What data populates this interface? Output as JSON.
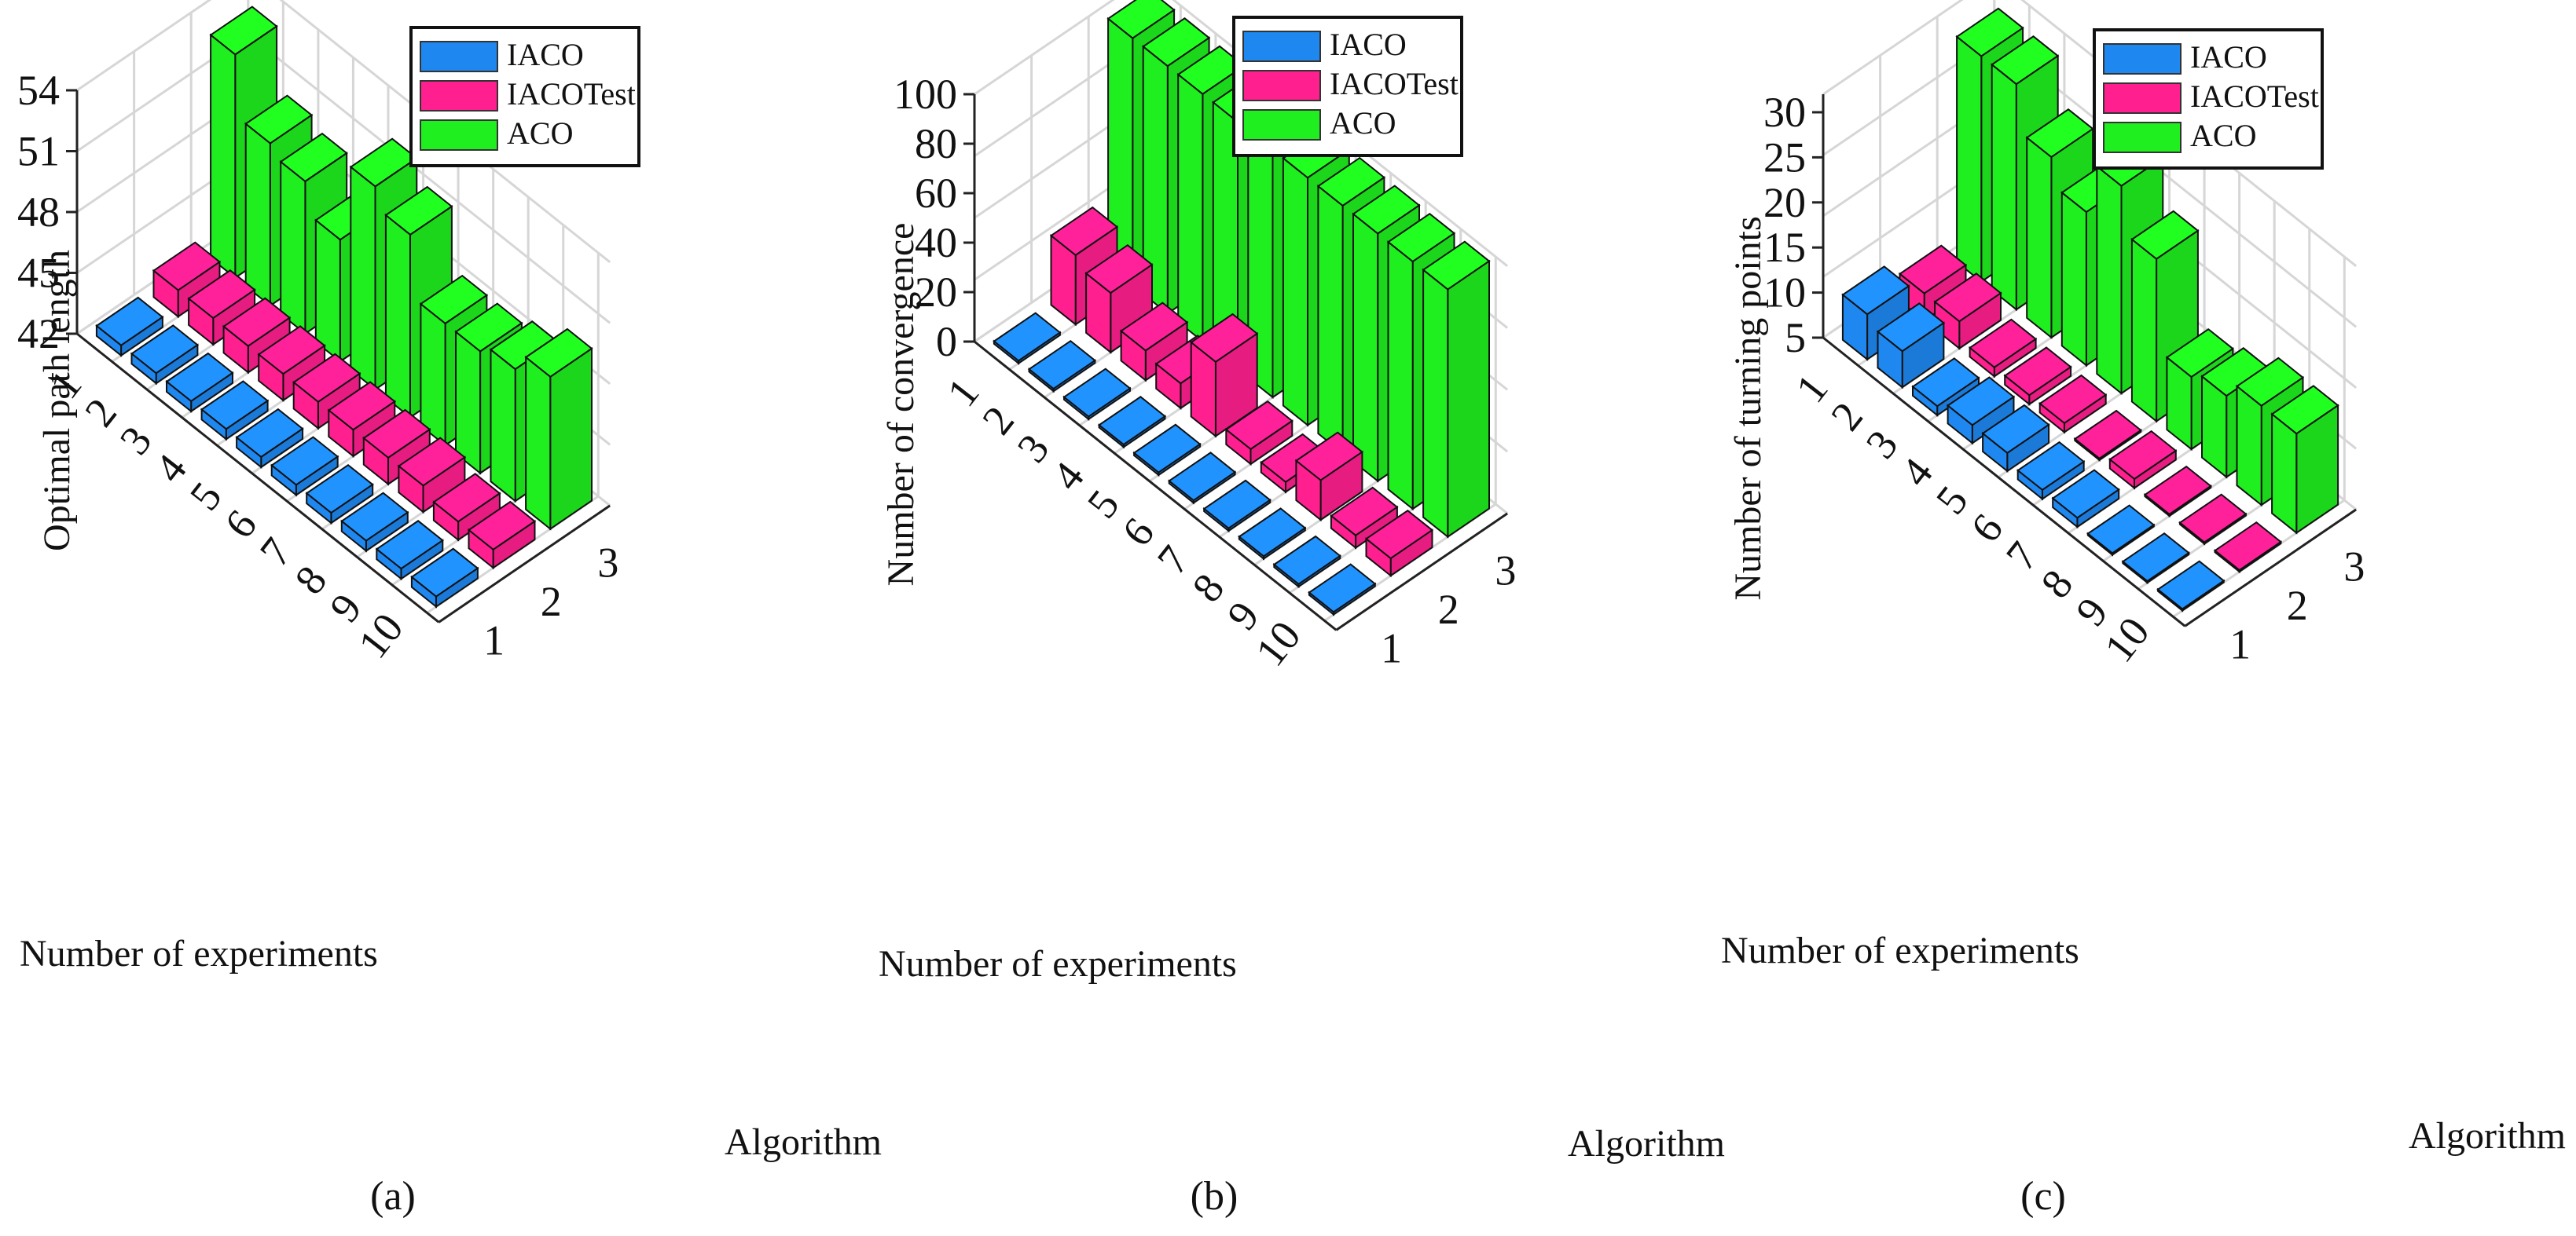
{
  "figure": {
    "charts": [
      {
        "caption": "(a)"
      },
      {
        "caption": "(b)"
      },
      {
        "caption": "(c)"
      }
    ]
  },
  "colors": {
    "IACO": "#1e88f0",
    "IACOTest": "#ff1f8f",
    "ACO": "#1fee1f"
  },
  "chart_data": [
    {
      "type": "bar3d",
      "caption": "(a)",
      "zlabel": "Optimal path length",
      "xlabel": "Number of experiments",
      "ylabel": "Algorithm",
      "x_ticks": [
        "1",
        "2",
        "3",
        "4",
        "5",
        "6",
        "7",
        "8",
        "9",
        "10"
      ],
      "y_ticks": [
        "1",
        "2",
        "3"
      ],
      "z_ticks": [
        "42",
        "45",
        "48",
        "51",
        "54"
      ],
      "zlim": [
        42,
        54
      ],
      "legend": [
        "IACO",
        "IACOTest",
        "ACO"
      ],
      "legend_position": "top",
      "categories": [
        "1",
        "2",
        "3",
        "4",
        "5",
        "6",
        "7",
        "8",
        "9",
        "10"
      ],
      "series": [
        {
          "name": "IACO",
          "values": [
            42.5,
            42.5,
            42.5,
            42.5,
            42.5,
            42.5,
            42.5,
            42.5,
            42.5,
            42.5
          ]
        },
        {
          "name": "IACOTest",
          "values": [
            43.3,
            43.3,
            43.3,
            43.3,
            43.3,
            43.3,
            43.3,
            43.3,
            42.9,
            42.9
          ]
        },
        {
          "name": "ACO",
          "values": [
            53.0,
            50.0,
            49.5,
            48.0,
            52.0,
            51.0,
            48.0,
            48.0,
            48.5,
            49.5
          ]
        }
      ]
    },
    {
      "type": "bar3d",
      "caption": "(b)",
      "zlabel": "Number of convergence",
      "xlabel": "Number of experiments",
      "ylabel": "Algorithm",
      "x_ticks": [
        "1",
        "2",
        "3",
        "4",
        "5",
        "6",
        "7",
        "8",
        "9",
        "10"
      ],
      "y_ticks": [
        "1",
        "2",
        "3"
      ],
      "z_ticks": [
        "0",
        "20",
        "40",
        "60",
        "80",
        "100"
      ],
      "zlim": [
        0,
        100
      ],
      "legend": [
        "IACO",
        "IACOTest",
        "ACO"
      ],
      "legend_position": "top",
      "categories": [
        "1",
        "2",
        "3",
        "4",
        "5",
        "6",
        "7",
        "8",
        "9",
        "10"
      ],
      "series": [
        {
          "name": "IACO",
          "values": [
            1,
            1,
            1,
            1,
            1,
            1,
            1,
            1,
            1,
            1
          ]
        },
        {
          "name": "IACOTest",
          "values": [
            28,
            24,
            12,
            10,
            30,
            6,
            4,
            16,
            5,
            7
          ]
        },
        {
          "name": "ACO",
          "values": [
            100,
            100,
            100,
            100,
            100,
            100,
            100,
            100,
            100,
            100
          ]
        }
      ]
    },
    {
      "type": "bar3d",
      "caption": "(c)",
      "zlabel": "Number of turning points",
      "xlabel": "Number of experiments",
      "ylabel": "Algorithm",
      "x_ticks": [
        "1",
        "2",
        "3",
        "4",
        "5",
        "6",
        "7",
        "8",
        "9",
        "10"
      ],
      "y_ticks": [
        "1",
        "2",
        "3"
      ],
      "z_ticks": [
        "5",
        "10",
        "15",
        "20",
        "25",
        "30"
      ],
      "zlim": [
        5,
        32
      ],
      "legend": [
        "IACO",
        "IACOTest",
        "ACO"
      ],
      "legend_position": "top",
      "categories": [
        "1",
        "2",
        "3",
        "4",
        "5",
        "6",
        "7",
        "8",
        "9",
        "10"
      ],
      "series": [
        {
          "name": "IACO",
          "values": [
            10,
            9,
            6,
            7,
            7,
            6,
            6,
            5,
            5,
            5
          ]
        },
        {
          "name": "IACOTest",
          "values": [
            8,
            8,
            6,
            6,
            6,
            5,
            6,
            4,
            4,
            4
          ]
        },
        {
          "name": "ACO",
          "values": [
            30,
            30,
            25,
            22,
            28,
            23,
            13,
            14,
            16,
            16
          ]
        }
      ]
    }
  ]
}
